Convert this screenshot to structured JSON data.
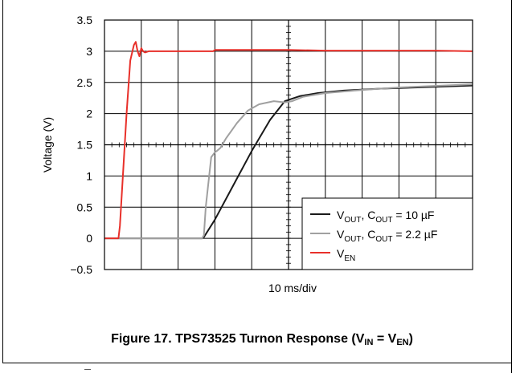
{
  "caption": {
    "text": "Figure 17. TPS73525 Turnon Response (V",
    "vin_sub": "IN",
    "eq": " = V",
    "ven_sub": "EN",
    "close": ")"
  },
  "chart_data": {
    "type": "line",
    "ylabel": "Voltage (V)",
    "xlabel": "10 ms/div",
    "ylim": [
      -0.5,
      3.5
    ],
    "yticks": [
      "3.5",
      "3",
      "2.5",
      "2",
      "1.5",
      "1",
      "0.5",
      "0",
      "−0.5"
    ],
    "ytick_values": [
      3.5,
      3,
      2.5,
      2,
      1.5,
      1,
      0.5,
      0,
      -0.5
    ],
    "xlim": [
      0,
      10
    ],
    "x_unit": "div",
    "grid": true,
    "legend_position": "bottom-right",
    "series": [
      {
        "key": "vout10",
        "legend_main": "V",
        "legend_sub": "OUT",
        "legend_rest": ",  C",
        "legend_sub2": "OUT",
        "legend_tail": " = 10 µF",
        "color": "#1a1a1a",
        "x": [
          0,
          2.65,
          2.7,
          3.0,
          3.5,
          4.0,
          4.5,
          4.9,
          5.3,
          5.8,
          6.5,
          7.5,
          8.5,
          10
        ],
        "y": [
          0,
          0,
          0.02,
          0.3,
          0.85,
          1.4,
          1.9,
          2.2,
          2.28,
          2.33,
          2.37,
          2.4,
          2.42,
          2.45
        ]
      },
      {
        "key": "vout22",
        "legend_main": "V",
        "legend_sub": "OUT",
        "legend_rest": ",  C",
        "legend_sub2": "OUT",
        "legend_tail": " = 2.2 µF",
        "color": "#a0a0a0",
        "x": [
          0,
          2.65,
          2.7,
          2.75,
          2.9,
          3.0,
          3.05,
          3.15,
          3.3,
          3.6,
          3.9,
          4.2,
          4.6,
          4.9,
          5.1,
          5.4,
          6.0,
          7.0,
          8.0,
          10
        ],
        "y": [
          0,
          0,
          0.05,
          0.5,
          1.3,
          1.38,
          1.4,
          1.45,
          1.6,
          1.85,
          2.05,
          2.15,
          2.2,
          2.18,
          2.2,
          2.27,
          2.33,
          2.38,
          2.42,
          2.47
        ]
      },
      {
        "key": "ven",
        "legend_main": "V",
        "legend_sub": "EN",
        "legend_rest": "",
        "legend_sub2": "",
        "legend_tail": "",
        "color": "#e8302a",
        "x": [
          0,
          0.38,
          0.42,
          0.5,
          0.6,
          0.7,
          0.8,
          0.85,
          0.9,
          0.95,
          1.0,
          1.05,
          1.1,
          1.2,
          1.4,
          2.0,
          2.5,
          2.95,
          3.0,
          4,
          5,
          6,
          7,
          8,
          9,
          10
        ],
        "y": [
          0,
          0,
          0.2,
          1.0,
          2.0,
          2.85,
          3.1,
          3.15,
          3.0,
          2.92,
          3.05,
          3.0,
          2.98,
          3.0,
          3.0,
          3.0,
          3.0,
          3.0,
          3.02,
          3.02,
          3.02,
          3.01,
          3.01,
          3.01,
          3.01,
          3.0
        ]
      }
    ]
  }
}
